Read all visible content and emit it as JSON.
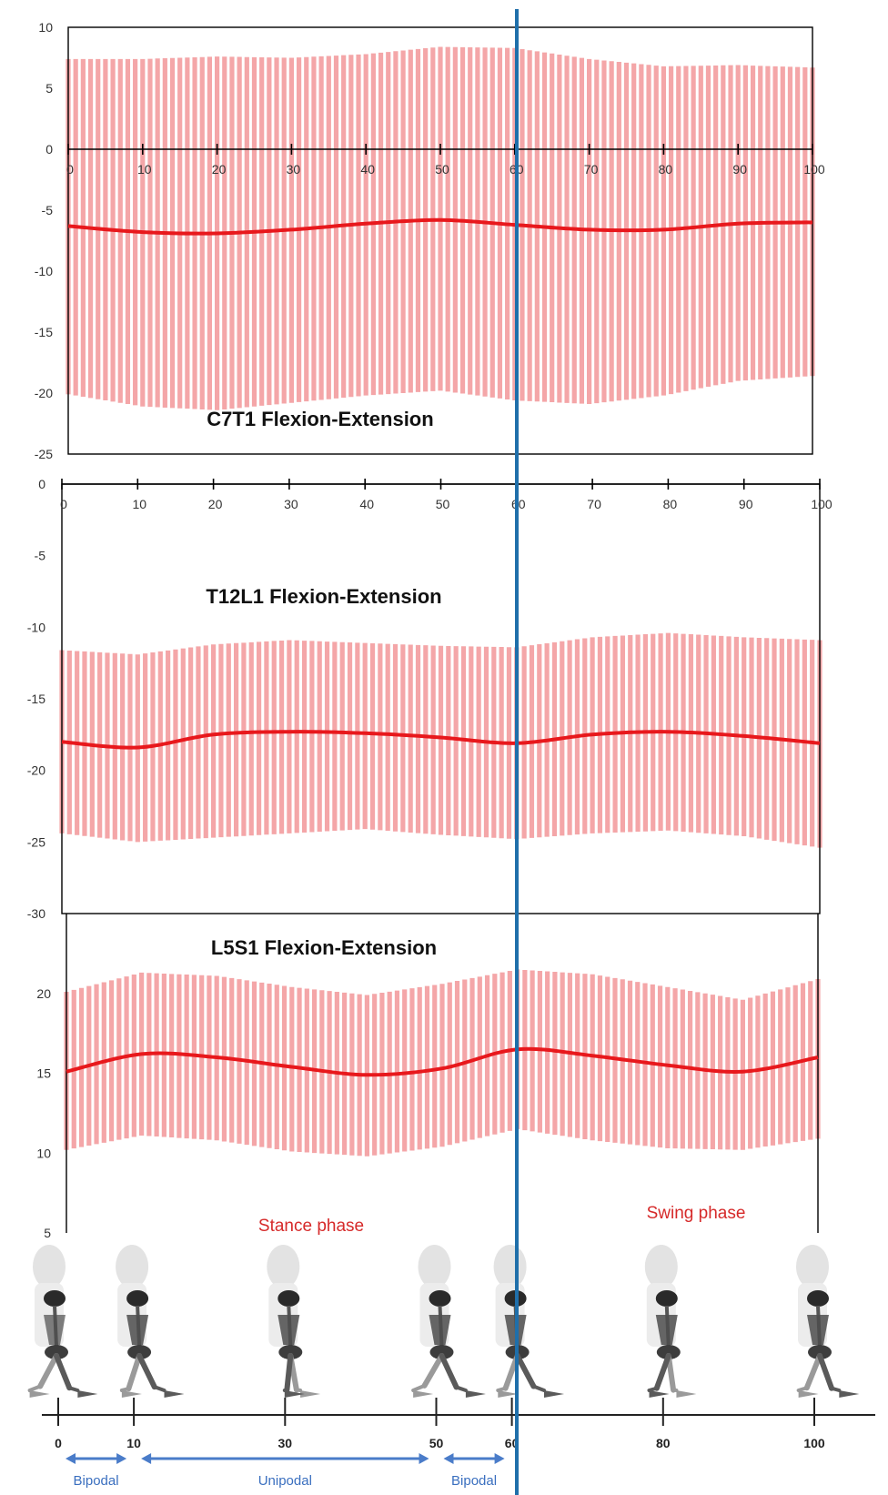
{
  "colors": {
    "mean_line": "#e8181c",
    "sd_band": "#f4a6a8",
    "phase_line": "#1f6faa",
    "axis": "#000000",
    "phase_text": "#d62a2a",
    "support_arrow": "#4a7cc9"
  },
  "chart_data": [
    {
      "type": "line",
      "title": "C7T1 Flexion-Extension",
      "xlabel": "",
      "ylabel": "",
      "xlim": [
        0,
        100
      ],
      "ylim": [
        -25,
        10
      ],
      "x_ticks": [
        "0",
        "10",
        "20",
        "30",
        "40",
        "50",
        "60",
        "70",
        "80",
        "90",
        "100"
      ],
      "y_ticks": [
        "10",
        "5",
        "0",
        "-5",
        "-10",
        "-15",
        "-20",
        "-25"
      ],
      "grid": false,
      "x": [
        0,
        10,
        20,
        30,
        40,
        50,
        60,
        70,
        80,
        90,
        100
      ],
      "series": [
        {
          "values": [
            -6.3,
            -6.8,
            -6.9,
            -6.6,
            -6.1,
            -5.8,
            -6.2,
            -6.6,
            -6.6,
            -6.1,
            -6.0
          ]
        }
      ],
      "band_upper": [
        7.4,
        7.4,
        7.6,
        7.5,
        7.8,
        8.4,
        8.3,
        7.4,
        6.8,
        6.9,
        6.7
      ],
      "band_lower": [
        -20.1,
        -21.1,
        -21.4,
        -20.8,
        -20.2,
        -19.8,
        -20.6,
        -20.9,
        -20.2,
        -19.0,
        -18.6
      ]
    },
    {
      "type": "line",
      "title": "T12L1 Flexion-Extension",
      "xlabel": "",
      "ylabel": "",
      "xlim": [
        0,
        100
      ],
      "ylim": [
        -30,
        0
      ],
      "x_ticks": [
        "0",
        "10",
        "20",
        "30",
        "40",
        "50",
        "60",
        "70",
        "80",
        "90",
        "100"
      ],
      "y_ticks": [
        "0",
        "-5",
        "-10",
        "-15",
        "-20",
        "-25",
        "-30"
      ],
      "grid": false,
      "x": [
        0,
        10,
        20,
        30,
        40,
        50,
        60,
        70,
        80,
        90,
        100
      ],
      "series": [
        {
          "values": [
            -18.0,
            -18.4,
            -17.5,
            -17.3,
            -17.4,
            -17.7,
            -18.1,
            -17.5,
            -17.3,
            -17.6,
            -18.1
          ]
        }
      ],
      "band_upper": [
        -11.6,
        -11.9,
        -11.2,
        -10.9,
        -11.1,
        -11.3,
        -11.4,
        -10.7,
        -10.4,
        -10.7,
        -10.9
      ],
      "band_lower": [
        -24.4,
        -25.0,
        -24.7,
        -24.4,
        -24.1,
        -24.5,
        -24.8,
        -24.4,
        -24.2,
        -24.6,
        -25.4
      ]
    },
    {
      "type": "line",
      "title": "L5S1 Flexion-Extension",
      "xlabel": "",
      "ylabel": "",
      "xlim": [
        0,
        100
      ],
      "ylim": [
        5,
        25
      ],
      "y_ticks": [
        "20",
        "15",
        "10",
        "5"
      ],
      "grid": false,
      "x": [
        0,
        10,
        20,
        30,
        40,
        50,
        60,
        70,
        80,
        90,
        100
      ],
      "series": [
        {
          "values": [
            15.1,
            16.2,
            16.0,
            15.4,
            14.9,
            15.3,
            16.5,
            16.1,
            15.5,
            15.1,
            16.0
          ]
        }
      ],
      "band_upper": [
        20.1,
        21.3,
        21.1,
        20.4,
        19.9,
        20.6,
        21.5,
        21.2,
        20.4,
        19.6,
        20.9
      ],
      "band_lower": [
        10.2,
        11.1,
        10.8,
        10.1,
        9.8,
        10.4,
        11.5,
        10.8,
        10.3,
        10.2,
        10.9
      ]
    }
  ],
  "gait_cycle": {
    "phase_line_at": 60,
    "stance_label": "Stance phase",
    "swing_label": "Swing phase",
    "axis_ticks": [
      "0",
      "10",
      "30",
      "50",
      "60",
      "80",
      "100"
    ],
    "support_phases": [
      {
        "label": "Bipodal",
        "from": 0,
        "to": 10
      },
      {
        "label": "Unipodal",
        "from": 10,
        "to": 50
      },
      {
        "label": "Bipodal",
        "from": 50,
        "to": 60
      }
    ],
    "figure_positions": [
      0,
      10,
      30,
      50,
      60,
      80,
      100
    ]
  }
}
